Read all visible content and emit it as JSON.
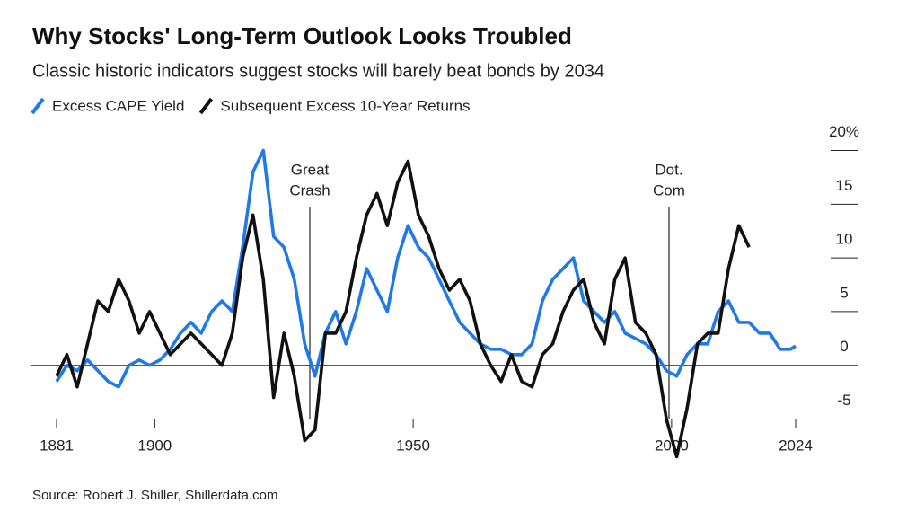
{
  "chart_data": {
    "type": "line",
    "title": "Why Stocks' Long-Term Outlook Looks Troubled",
    "subtitle": "Classic historic indicators suggest stocks will barely beat bonds by 2034",
    "source": "Source: Robert J. Shiller, Shillerdata.com",
    "x": [
      1881,
      1883,
      1885,
      1887,
      1889,
      1891,
      1893,
      1895,
      1897,
      1899,
      1901,
      1903,
      1905,
      1907,
      1909,
      1911,
      1913,
      1915,
      1917,
      1919,
      1921,
      1923,
      1925,
      1927,
      1929,
      1931,
      1933,
      1935,
      1937,
      1939,
      1941,
      1943,
      1945,
      1947,
      1949,
      1951,
      1953,
      1955,
      1957,
      1959,
      1961,
      1963,
      1965,
      1967,
      1969,
      1971,
      1973,
      1975,
      1977,
      1979,
      1981,
      1983,
      1985,
      1987,
      1989,
      1991,
      1993,
      1995,
      1997,
      1999,
      2001,
      2003,
      2005,
      2007,
      2009,
      2011,
      2013,
      2015,
      2017,
      2019,
      2021,
      2023,
      2024
    ],
    "series": [
      {
        "name": "Excess CAPE Yield",
        "color": "#1f7ae8",
        "values": [
          -1.5,
          0,
          -0.5,
          0.5,
          -0.5,
          -1.5,
          -2,
          0,
          0.5,
          0,
          0.5,
          1.5,
          3,
          4,
          3,
          5,
          6,
          5,
          11,
          18,
          20,
          12,
          11,
          8,
          2,
          -1,
          3,
          5,
          2,
          5,
          9,
          7,
          5,
          10,
          13,
          11,
          10,
          8,
          6,
          4,
          3,
          2,
          1.5,
          1.5,
          1,
          1,
          2,
          6,
          8,
          9,
          10,
          6,
          5,
          4,
          5,
          3,
          2.5,
          2,
          1,
          -0.5,
          -1,
          1,
          2,
          2,
          5,
          6,
          4,
          4,
          3,
          3,
          1.5,
          1.5,
          1.8
        ]
      },
      {
        "name": "Subsequent Excess 10-Year Returns",
        "color": "#111111",
        "values": [
          -1,
          1,
          -2,
          2,
          6,
          5,
          8,
          6,
          3,
          5,
          3,
          1,
          2,
          3,
          2,
          1,
          0,
          3,
          10,
          14,
          8,
          -3,
          3,
          -1,
          -7,
          -6,
          3,
          3,
          5,
          10,
          14,
          16,
          13,
          17,
          19,
          14,
          12,
          9,
          7,
          8,
          6,
          2,
          0,
          -1.5,
          1,
          -1.5,
          -2,
          1,
          2,
          5,
          7,
          8,
          4,
          2,
          8,
          10,
          4,
          3,
          1,
          -5,
          -8.5,
          -4,
          2,
          3,
          3,
          9,
          13,
          11,
          null,
          null,
          null,
          null,
          null
        ]
      }
    ],
    "xlim": [
      1881,
      2024
    ],
    "xticks": [
      1881,
      1900,
      1950,
      2000,
      2024
    ],
    "ylim": [
      -8.8,
      22.3
    ],
    "yticks": [
      -5,
      0,
      5,
      10,
      15,
      {
        "value": 20,
        "label": "20%"
      }
    ],
    "annotations": [
      {
        "lines": [
          "Great",
          "Crash"
        ],
        "x": 1930
      },
      {
        "lines": [
          "Dot.",
          "Com"
        ],
        "x": 1999.5
      }
    ]
  }
}
